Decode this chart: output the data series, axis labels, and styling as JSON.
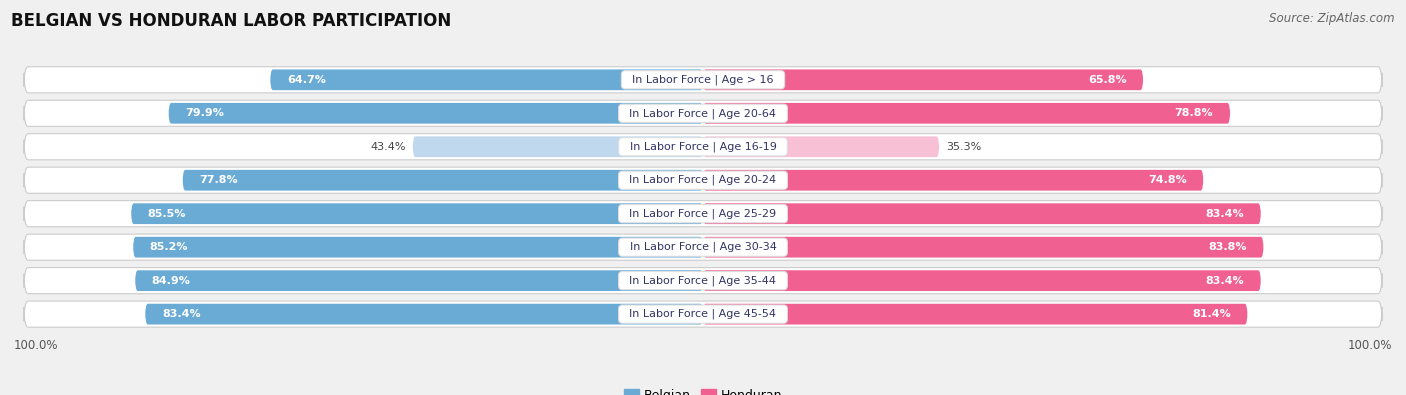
{
  "title": "BELGIAN VS HONDURAN LABOR PARTICIPATION",
  "source": "Source: ZipAtlas.com",
  "categories": [
    "In Labor Force | Age > 16",
    "In Labor Force | Age 20-64",
    "In Labor Force | Age 16-19",
    "In Labor Force | Age 20-24",
    "In Labor Force | Age 25-29",
    "In Labor Force | Age 30-34",
    "In Labor Force | Age 35-44",
    "In Labor Force | Age 45-54"
  ],
  "belgian_values": [
    64.7,
    79.9,
    43.4,
    77.8,
    85.5,
    85.2,
    84.9,
    83.4
  ],
  "honduran_values": [
    65.8,
    78.8,
    35.3,
    74.8,
    83.4,
    83.8,
    83.4,
    81.4
  ],
  "belgian_color": "#6aabd6",
  "honduran_color": "#f06090",
  "belgian_color_light": "#c0d8ee",
  "honduran_color_light": "#f8c0d4",
  "bg_color": "#f0f0f0",
  "row_bg_color": "#e8e8ec",
  "max_value": 100.0,
  "title_fontsize": 12,
  "cat_fontsize": 8,
  "value_fontsize": 8,
  "legend_fontsize": 9,
  "low_threshold": 60
}
